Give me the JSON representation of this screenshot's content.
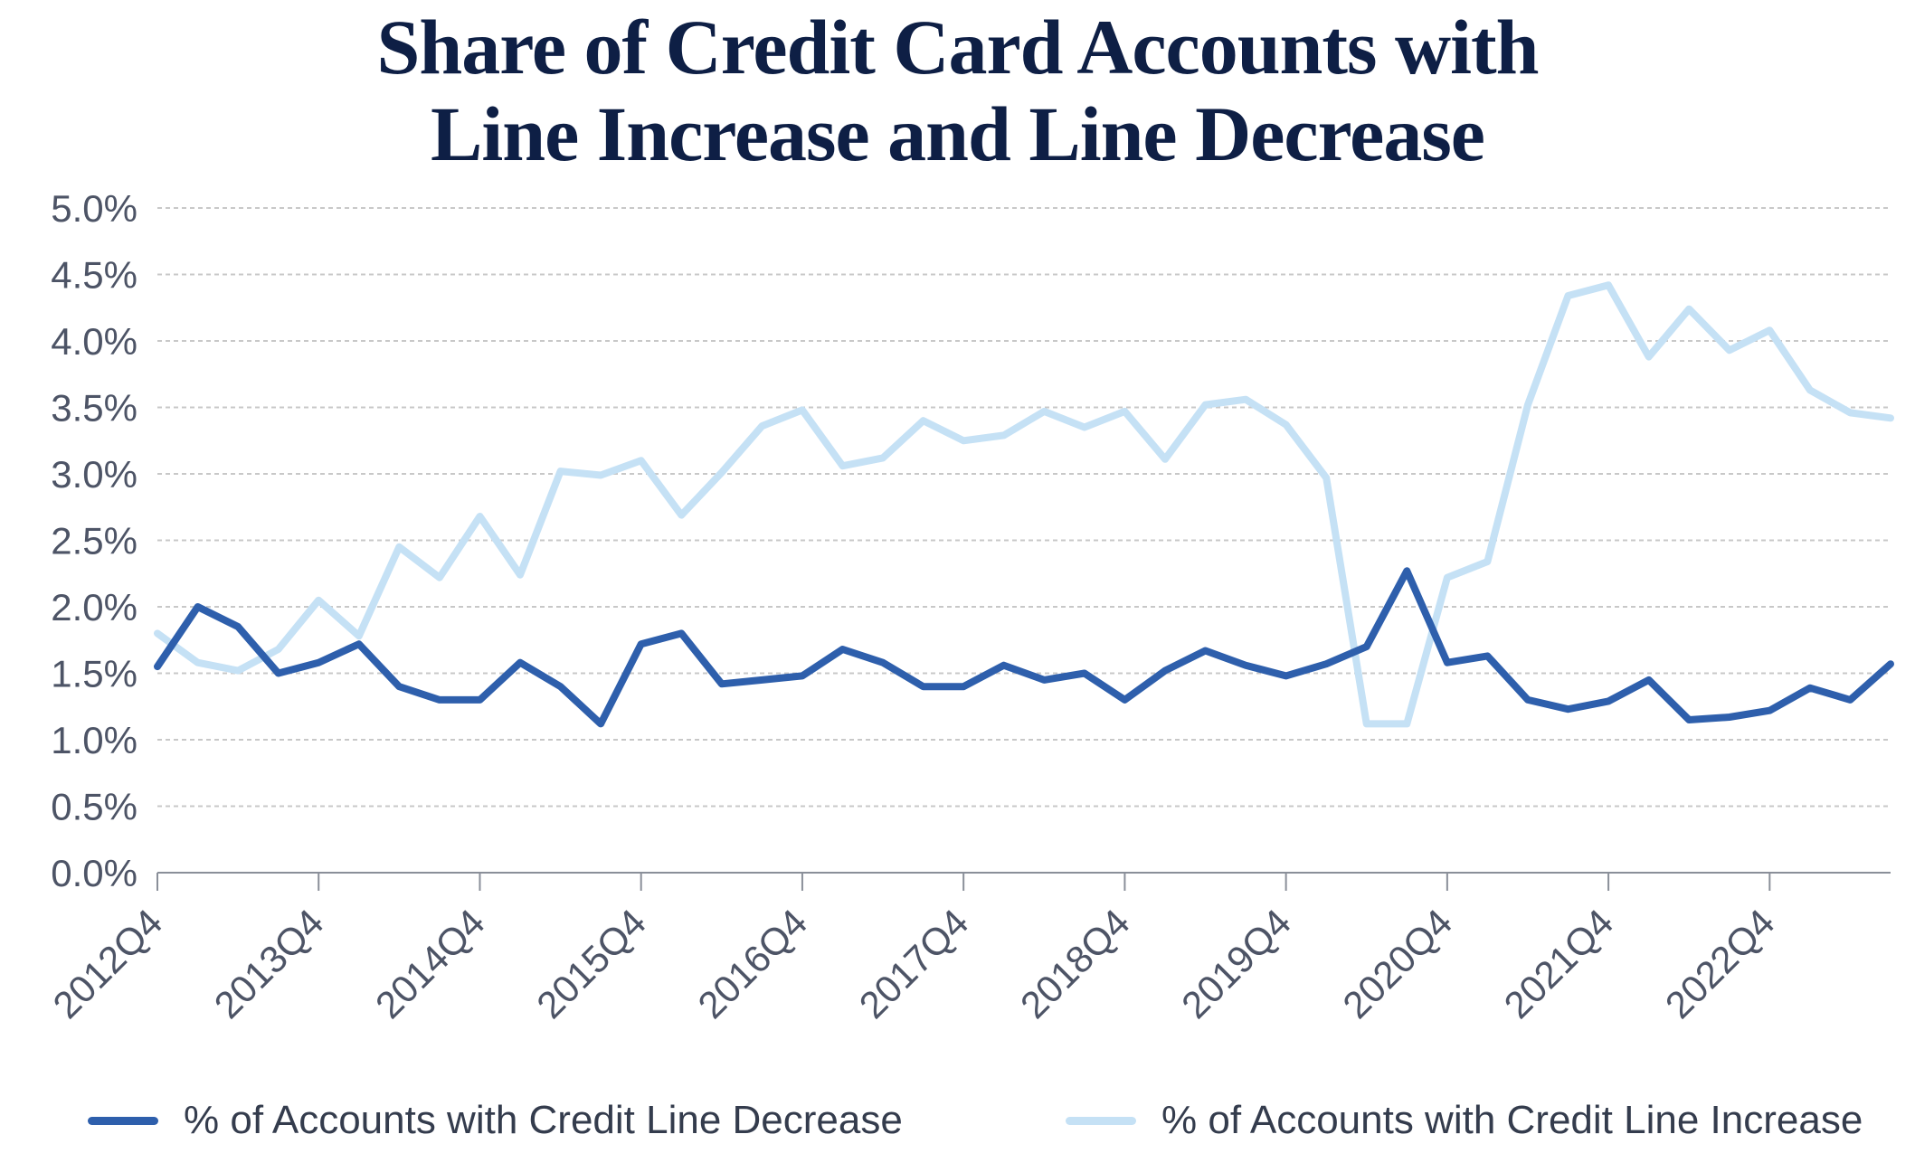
{
  "colors": {
    "title": "#0e1f45",
    "decrease_line": "#2e5fac",
    "increase_line": "#c5e1f5",
    "grid": "#c8c8c8",
    "axis_text": "#4d5466"
  },
  "chart_data": {
    "type": "line",
    "title": "Share of Credit Card Accounts with Line Increase and Line Decrease",
    "title_lines": [
      "Share of Credit Card Accounts with",
      "Line Increase and Line Decrease"
    ],
    "xlabel": "",
    "ylabel": "",
    "ylim": [
      0,
      5
    ],
    "y_ticks": [
      "0.0%",
      "0.5%",
      "1.0%",
      "1.5%",
      "2.0%",
      "2.5%",
      "3.0%",
      "3.5%",
      "4.0%",
      "4.5%",
      "5.0%"
    ],
    "x_tick_labels": [
      "2012Q4",
      "2013Q4",
      "2014Q4",
      "2015Q4",
      "2016Q4",
      "2017Q4",
      "2018Q4",
      "2019Q4",
      "2020Q4",
      "2021Q4",
      "2022Q4"
    ],
    "x": [
      "2012Q4",
      "2013Q1",
      "2013Q2",
      "2013Q3",
      "2013Q4",
      "2014Q1",
      "2014Q2",
      "2014Q3",
      "2014Q4",
      "2015Q1",
      "2015Q2",
      "2015Q3",
      "2015Q4",
      "2016Q1",
      "2016Q2",
      "2016Q3",
      "2016Q4",
      "2017Q1",
      "2017Q2",
      "2017Q3",
      "2017Q4",
      "2018Q1",
      "2018Q2",
      "2018Q3",
      "2018Q4",
      "2019Q1",
      "2019Q2",
      "2019Q3",
      "2019Q4",
      "2020Q1",
      "2020Q2",
      "2020Q3",
      "2020Q4",
      "2021Q1",
      "2021Q2",
      "2021Q3",
      "2021Q4",
      "2022Q1",
      "2022Q2",
      "2022Q3",
      "2022Q4",
      "2023Q1",
      "2023Q2",
      "2023Q3"
    ],
    "grid": true,
    "legend_position": "bottom",
    "series": [
      {
        "name": "% of Accounts with Credit Line Decrease",
        "color": "#2e5fac",
        "values": [
          1.55,
          2.0,
          1.85,
          1.5,
          1.58,
          1.72,
          1.4,
          1.3,
          1.3,
          1.58,
          1.4,
          1.12,
          1.72,
          1.8,
          1.42,
          1.45,
          1.48,
          1.68,
          1.58,
          1.4,
          1.4,
          1.56,
          1.45,
          1.5,
          1.3,
          1.52,
          1.67,
          1.56,
          1.48,
          1.57,
          1.7,
          2.27,
          1.58,
          1.63,
          1.3,
          1.23,
          1.29,
          1.45,
          1.15,
          1.17,
          1.22,
          1.39,
          1.3,
          1.57
        ]
      },
      {
        "name": "% of Accounts with Credit Line Increase",
        "color": "#c5e1f5",
        "values": [
          1.8,
          1.58,
          1.52,
          1.68,
          2.05,
          1.78,
          2.45,
          2.22,
          2.68,
          2.24,
          3.02,
          2.99,
          3.1,
          2.69,
          3.01,
          3.36,
          3.48,
          3.06,
          3.12,
          3.4,
          3.25,
          3.29,
          3.47,
          3.35,
          3.47,
          3.11,
          3.52,
          3.56,
          3.37,
          2.97,
          1.12,
          1.12,
          2.22,
          2.34,
          3.52,
          4.34,
          4.42,
          3.88,
          4.24,
          3.93,
          4.08,
          3.63,
          3.46,
          3.42
        ]
      }
    ]
  }
}
